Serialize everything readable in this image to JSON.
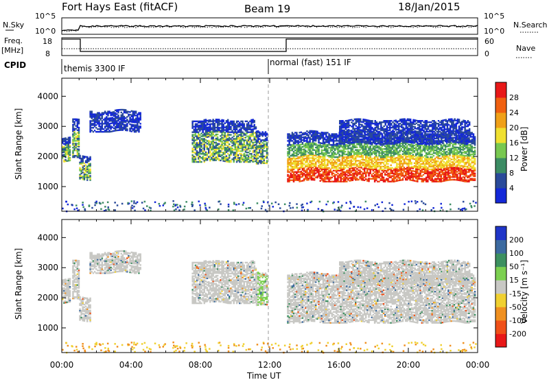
{
  "header": {
    "radar": "Fort Hays East (fitACF)",
    "beam": "Beam 19",
    "date": "18/Jan/2015"
  },
  "noise_panel": {
    "left_label": "N.Sky",
    "right_label": "N.Search",
    "left_ticks": [
      "10^5",
      "10^0"
    ],
    "right_ticks": [
      "10^5",
      "10^0"
    ]
  },
  "freq_panel": {
    "left_label_1": "Freq.",
    "left_label_2": "[MHz]",
    "right_label": "Nave",
    "left_ticks": [
      "18",
      "8"
    ],
    "right_ticks": [
      "60",
      "0"
    ]
  },
  "cpid": {
    "label": "CPID",
    "segments": [
      {
        "start_hour": 0,
        "text": "themis 3300 IF"
      },
      {
        "start_hour": 12,
        "text": "normal (fast) 151 IF"
      }
    ]
  },
  "x_axis": {
    "label": "Time UT",
    "ticks": [
      "00:00",
      "04:00",
      "08:00",
      "12:00",
      "16:00",
      "20:00",
      "00:00"
    ]
  },
  "chart_data": [
    {
      "type": "heatmap",
      "title": "Power",
      "xlabel": "Time UT",
      "ylabel": "Slant Range [km]",
      "xlim_hours": [
        0,
        24
      ],
      "ylim_km": [
        180,
        4600
      ],
      "y_ticks": [
        1000,
        2000,
        3000,
        4000
      ],
      "x_ticks": [
        "00:00",
        "04:00",
        "08:00",
        "12:00",
        "16:00",
        "20:00",
        "00:00"
      ],
      "colorbar": {
        "label": "Power [dB]",
        "ticks": [
          "4",
          "8",
          "12",
          "16",
          "20",
          "24",
          "28"
        ],
        "colors": [
          "#1428d8",
          "#2a4a9a",
          "#3c8c64",
          "#78c850",
          "#f0e030",
          "#f0a018",
          "#f06010",
          "#e81818"
        ]
      },
      "echo_bands": [
        {
          "t0": 0.0,
          "t1": 0.5,
          "r0": 1800,
          "r1": 2600,
          "level": "mid"
        },
        {
          "t0": 0.6,
          "t1": 1.0,
          "r0": 1900,
          "r1": 3200,
          "level": "mid"
        },
        {
          "t0": 1.0,
          "t1": 1.6,
          "r0": 1200,
          "r1": 2000,
          "level": "mid"
        },
        {
          "t0": 1.6,
          "t1": 4.5,
          "r0": 2800,
          "r1": 3500,
          "level": "low"
        },
        {
          "t0": 7.5,
          "t1": 11.2,
          "r0": 1800,
          "r1": 3200,
          "level": "mid"
        },
        {
          "t0": 11.2,
          "t1": 11.8,
          "r0": 1700,
          "r1": 2800,
          "level": "mid"
        },
        {
          "t0": 13.0,
          "t1": 23.8,
          "r0": 1150,
          "r1": 2800,
          "level": "high"
        },
        {
          "t0": 16.0,
          "t1": 23.5,
          "r0": 2400,
          "r1": 3200,
          "level": "low"
        }
      ],
      "dashed_line_hour": 12
    },
    {
      "type": "heatmap",
      "title": "Velocity",
      "xlabel": "Time UT",
      "ylabel": "Slant Range [km]",
      "xlim_hours": [
        0,
        24
      ],
      "ylim_km": [
        180,
        4600
      ],
      "y_ticks": [
        1000,
        2000,
        3000,
        4000
      ],
      "x_ticks": [
        "00:00",
        "04:00",
        "08:00",
        "12:00",
        "16:00",
        "20:00",
        "00:00"
      ],
      "colorbar": {
        "label": "Velocity [m s⁻¹]",
        "ticks": [
          "200",
          "100",
          "50",
          "15",
          "-15",
          "-50",
          "-100",
          "-200"
        ],
        "colors": [
          "#1f35c8",
          "#3c6aa0",
          "#3c9060",
          "#7cd050",
          "#c8c8c4",
          "#f0d030",
          "#f09020",
          "#f05018",
          "#e81818"
        ]
      },
      "dashed_line_hour": 12
    }
  ]
}
